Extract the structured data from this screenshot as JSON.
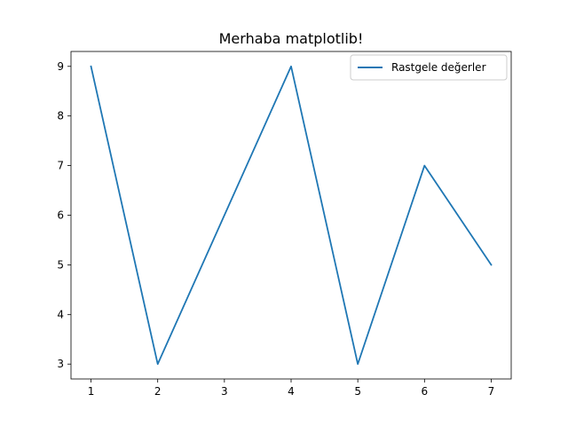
{
  "chart_data": {
    "type": "line",
    "title": "Merhaba matplotlib!",
    "xlabel": "",
    "ylabel": "",
    "x": [
      1,
      2,
      3,
      4,
      5,
      6,
      7
    ],
    "series": [
      {
        "name": "Rastgele değerler",
        "values": [
          9,
          3,
          6,
          9,
          3,
          7,
          5
        ],
        "color": "#1f77b4"
      }
    ],
    "xlim": [
      0.7,
      7.3
    ],
    "ylim": [
      2.7,
      9.3
    ],
    "xticks": [
      1,
      2,
      3,
      4,
      5,
      6,
      7
    ],
    "yticks": [
      3,
      4,
      5,
      6,
      7,
      8,
      9
    ],
    "grid": false,
    "legend_position": "top-right"
  }
}
